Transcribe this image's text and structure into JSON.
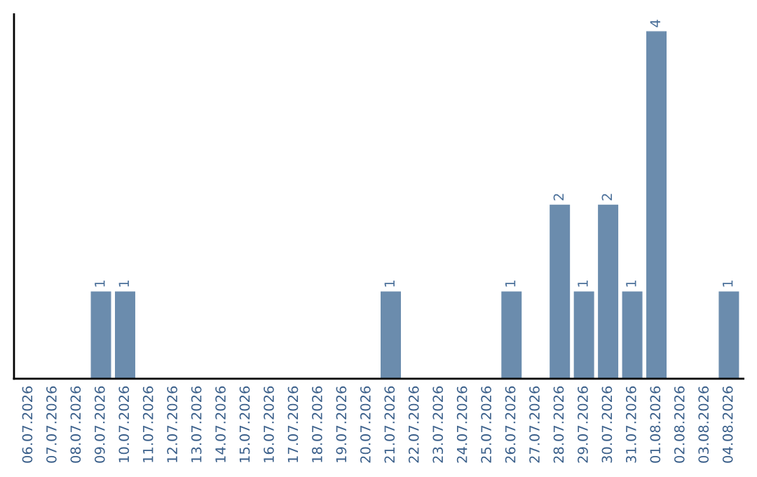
{
  "chart_data": {
    "type": "bar",
    "categories": [
      "06.07.2026",
      "07.07.2026",
      "08.07.2026",
      "09.07.2026",
      "10.07.2026",
      "11.07.2026",
      "12.07.2026",
      "13.07.2026",
      "14.07.2026",
      "15.07.2026",
      "16.07.2026",
      "17.07.2026",
      "18.07.2026",
      "19.07.2026",
      "20.07.2026",
      "21.07.2026",
      "22.07.2026",
      "23.07.2026",
      "24.07.2026",
      "25.07.2026",
      "26.07.2026",
      "27.07.2026",
      "28.07.2026",
      "29.07.2026",
      "30.07.2026",
      "31.07.2026",
      "01.08.2026",
      "02.08.2026",
      "03.08.2026",
      "04.08.2026"
    ],
    "values": [
      0,
      0,
      0,
      1,
      1,
      0,
      0,
      0,
      0,
      0,
      0,
      0,
      0,
      0,
      0,
      1,
      0,
      0,
      0,
      0,
      1,
      0,
      2,
      1,
      2,
      1,
      4,
      0,
      0,
      1
    ],
    "value_labels": [
      null,
      null,
      null,
      "1",
      "1",
      null,
      null,
      null,
      null,
      null,
      null,
      null,
      null,
      null,
      null,
      "1",
      null,
      null,
      null,
      null,
      "1",
      null,
      "2",
      "1",
      "2",
      "1",
      "4",
      null,
      null,
      "1"
    ],
    "color": "#6b8cad",
    "tick_labels": "x",
    "grid": false,
    "legend": false
  }
}
